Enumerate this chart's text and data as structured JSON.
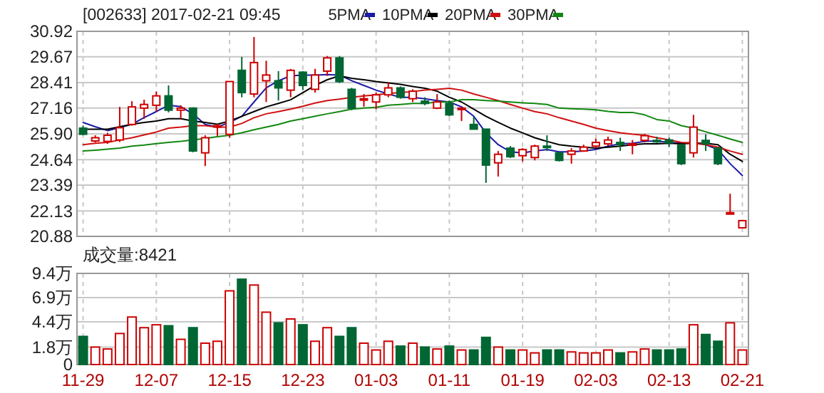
{
  "chart_data": [
    {
      "type": "candlestick",
      "title": "[002633] 2017-02-21 09:45",
      "categories": [
        null,
        null,
        null,
        null,
        null,
        null,
        null,
        null,
        null,
        null,
        null,
        null,
        null,
        null,
        null,
        null,
        null,
        null,
        null,
        null,
        null,
        null,
        null,
        null,
        null,
        null,
        null,
        null,
        null,
        null,
        null,
        null,
        null,
        null,
        null,
        null,
        null,
        null,
        null,
        null,
        null,
        null,
        null,
        null,
        null,
        null,
        null,
        null,
        null,
        null,
        null,
        null,
        null,
        null,
        null
      ],
      "ohlc": [
        [
          26.18,
          26.3,
          25.83,
          25.88
        ],
        [
          25.55,
          25.83,
          25.48,
          25.71
        ],
        [
          25.53,
          25.95,
          25.41,
          25.83
        ],
        [
          25.6,
          27.22,
          25.5,
          26.2
        ],
        [
          26.36,
          27.5,
          26.3,
          27.22
        ],
        [
          27.16,
          27.57,
          26.64,
          27.34
        ],
        [
          27.3,
          27.97,
          26.99,
          27.76
        ],
        [
          27.76,
          28.27,
          26.95,
          27.06
        ],
        [
          27.06,
          27.3,
          26.64,
          27.16
        ],
        [
          27.16,
          27.2,
          25.0,
          25.06
        ],
        [
          24.97,
          25.83,
          24.32,
          25.71
        ],
        [
          26.23,
          26.4,
          25.8,
          26.3
        ],
        [
          25.88,
          28.46,
          25.71,
          28.46
        ],
        [
          29.01,
          29.67,
          27.69,
          27.92
        ],
        [
          27.85,
          30.64,
          27.69,
          29.39
        ],
        [
          28.5,
          29.48,
          27.46,
          28.78
        ],
        [
          28.5,
          28.97,
          27.53,
          28.15
        ],
        [
          28.04,
          29.08,
          27.69,
          29.01
        ],
        [
          28.92,
          28.97,
          28.04,
          28.27
        ],
        [
          28.08,
          29.08,
          27.92,
          28.78
        ],
        [
          28.97,
          29.71,
          28.74,
          29.62
        ],
        [
          29.62,
          29.71,
          28.39,
          28.46
        ],
        [
          28.08,
          28.15,
          27.06,
          27.16
        ],
        [
          27.57,
          27.85,
          27.23,
          27.62
        ],
        [
          27.46,
          27.92,
          27.11,
          27.81
        ],
        [
          27.81,
          28.43,
          27.69,
          28.15
        ],
        [
          28.15,
          28.22,
          27.62,
          27.69
        ],
        [
          27.62,
          28.08,
          27.46,
          27.99
        ],
        [
          27.5,
          27.69,
          27.3,
          27.39
        ],
        [
          27.16,
          27.85,
          27.11,
          27.46
        ],
        [
          27.39,
          27.53,
          26.76,
          26.83
        ],
        [
          27.11,
          27.2,
          26.53,
          27.16
        ],
        [
          26.36,
          26.76,
          26.13,
          26.13
        ],
        [
          26.13,
          26.13,
          23.5,
          24.37
        ],
        [
          24.48,
          25.06,
          23.81,
          24.9
        ],
        [
          25.2,
          25.3,
          24.72,
          24.78
        ],
        [
          24.83,
          25.2,
          24.55,
          25.13
        ],
        [
          24.74,
          25.37,
          24.6,
          25.3
        ],
        [
          25.3,
          25.83,
          25.06,
          25.25
        ],
        [
          24.97,
          25.0,
          24.55,
          24.6
        ],
        [
          24.9,
          25.2,
          24.44,
          25.06
        ],
        [
          25.06,
          25.37,
          25.02,
          25.25
        ],
        [
          25.3,
          25.67,
          25.2,
          25.48
        ],
        [
          25.41,
          25.76,
          25.3,
          25.6
        ],
        [
          25.48,
          25.71,
          25.06,
          25.37
        ],
        [
          25.35,
          25.6,
          24.9,
          25.41
        ],
        [
          25.58,
          25.9,
          25.48,
          25.81
        ],
        [
          25.58,
          25.76,
          25.46,
          25.55
        ],
        [
          25.6,
          25.71,
          25.25,
          25.46
        ],
        [
          25.34,
          25.41,
          24.37,
          24.44
        ],
        [
          24.97,
          26.83,
          24.74,
          26.23
        ],
        [
          25.58,
          25.88,
          25.06,
          25.41
        ],
        [
          25.2,
          25.25,
          24.37,
          24.44
        ],
        [
          22.04,
          22.97,
          22.04,
          22.04
        ],
        [
          21.3,
          21.65,
          21.3,
          21.65
        ]
      ],
      "colors": [
        "#006633",
        "#cc0000",
        "#cc0000",
        "#cc0000",
        "#cc0000",
        "#cc0000",
        "#cc0000",
        "#006633",
        "#cc0000",
        "#006633",
        "#cc0000",
        "#cc0000",
        "#cc0000",
        "#006633",
        "#cc0000",
        "#cc0000",
        "#006633",
        "#cc0000",
        "#006633",
        "#cc0000",
        "#cc0000",
        "#006633",
        "#006633",
        "#cc0000",
        "#cc0000",
        "#cc0000",
        "#006633",
        "#cc0000",
        "#006633",
        "#cc0000",
        "#006633",
        "#cc0000",
        "#006633",
        "#006633",
        "#cc0000",
        "#006633",
        "#cc0000",
        "#cc0000",
        "#006633",
        "#006633",
        "#cc0000",
        "#cc0000",
        "#cc0000",
        "#cc0000",
        "#006633",
        "#cc0000",
        "#cc0000",
        "#006633",
        "#006633",
        "#006633",
        "#cc0000",
        "#006633",
        "#006633",
        "#cc0000",
        "#cc0000"
      ],
      "series": [
        {
          "name": "5PMA",
          "type": "line",
          "color": "#1a1aa6",
          "values": [
            26.46,
            26.25,
            26.06,
            26.2,
            26.37,
            26.7,
            26.99,
            27.3,
            27.23,
            26.88,
            26.36,
            26.23,
            26.46,
            26.76,
            27.46,
            28.15,
            28.5,
            28.74,
            28.78,
            28.78,
            28.8,
            28.78,
            28.5,
            28.27,
            28.04,
            27.85,
            27.69,
            27.69,
            27.62,
            27.53,
            27.46,
            27.22,
            26.76,
            25.95,
            25.37,
            25.02,
            24.97,
            25.06,
            25.13,
            25.02,
            25.02,
            25.06,
            25.13,
            25.3,
            25.41,
            25.44,
            25.53,
            25.55,
            25.48,
            25.44,
            25.48,
            25.37,
            25.13,
            24.44,
            23.86
          ]
        },
        {
          "name": "10PMA",
          "type": "line",
          "color": "#000000",
          "values": [
            26.13,
            26.13,
            26.13,
            26.25,
            26.37,
            26.46,
            26.53,
            26.64,
            26.64,
            26.53,
            26.46,
            26.37,
            26.53,
            26.76,
            26.99,
            27.22,
            27.39,
            27.57,
            27.92,
            28.27,
            28.55,
            28.74,
            28.62,
            28.55,
            28.46,
            28.39,
            28.32,
            28.22,
            28.13,
            27.99,
            27.69,
            27.46,
            27.11,
            26.76,
            26.46,
            26.18,
            25.95,
            25.71,
            25.53,
            25.37,
            25.3,
            25.25,
            25.2,
            25.25,
            25.3,
            25.37,
            25.41,
            25.41,
            25.44,
            25.41,
            25.44,
            25.44,
            25.37,
            24.9,
            24.55
          ]
        },
        {
          "name": "20PMA",
          "type": "line",
          "color": "#d01010",
          "values": [
            25.37,
            25.44,
            25.48,
            25.6,
            25.71,
            25.85,
            25.99,
            26.18,
            26.23,
            26.3,
            26.3,
            26.23,
            26.23,
            26.41,
            26.69,
            26.88,
            26.99,
            27.11,
            27.25,
            27.41,
            27.53,
            27.6,
            27.69,
            27.76,
            27.81,
            27.88,
            27.92,
            27.97,
            28.04,
            28.08,
            28.13,
            28.04,
            27.85,
            27.69,
            27.53,
            27.34,
            27.16,
            26.99,
            26.88,
            26.69,
            26.53,
            26.36,
            26.18,
            26.06,
            25.95,
            25.88,
            25.83,
            25.71,
            25.6,
            25.48,
            25.44,
            25.37,
            25.25,
            25.06,
            24.9
          ]
        },
        {
          "name": "30PMA",
          "type": "line",
          "color": "#118811",
          "values": [
            25.06,
            25.1,
            25.15,
            25.2,
            25.3,
            25.35,
            25.42,
            25.48,
            25.53,
            25.6,
            25.67,
            25.76,
            25.83,
            25.95,
            26.1,
            26.23,
            26.36,
            26.53,
            26.64,
            26.76,
            26.88,
            26.99,
            27.11,
            27.16,
            27.2,
            27.3,
            27.34,
            27.39,
            27.39,
            27.46,
            27.46,
            27.57,
            27.57,
            27.53,
            27.5,
            27.46,
            27.42,
            27.39,
            27.34,
            27.16,
            27.13,
            27.11,
            27.08,
            27.0,
            26.95,
            26.95,
            26.83,
            26.6,
            26.53,
            26.3,
            26.18,
            26.0,
            25.83,
            25.65,
            25.48
          ]
        }
      ],
      "ylim": [
        20.88,
        30.92
      ],
      "yticks": [
        20.88,
        22.13,
        23.39,
        24.64,
        {
          "value": 25.9,
          "label": "25.90"
        },
        27.16,
        28.41,
        29.67,
        30.92
      ],
      "grid": true,
      "legend": "top right",
      "tick_labels": "y"
    },
    {
      "type": "bar",
      "title": "成交量:8421",
      "categories": [
        "11-29",
        null,
        null,
        null,
        null,
        null,
        "12-07",
        null,
        null,
        null,
        null,
        null,
        "12-15",
        null,
        null,
        null,
        null,
        null,
        "12-23",
        null,
        null,
        null,
        null,
        null,
        "01-03",
        null,
        null,
        null,
        null,
        null,
        "01-11",
        null,
        null,
        null,
        null,
        null,
        "01-19",
        null,
        null,
        null,
        null,
        null,
        "02-03",
        null,
        null,
        null,
        null,
        null,
        "02-13",
        null,
        null,
        null,
        null,
        null,
        "02-21"
      ],
      "values": [
        2.9,
        1.8,
        1.6,
        3.2,
        4.9,
        3.8,
        4.1,
        4.0,
        2.6,
        3.8,
        2.2,
        2.4,
        7.6,
        8.8,
        8.2,
        5.4,
        4.3,
        4.7,
        4.1,
        2.4,
        3.8,
        2.9,
        3.8,
        2.2,
        1.5,
        2.4,
        1.9,
        2.2,
        1.8,
        1.6,
        1.9,
        1.5,
        1.5,
        2.8,
        1.8,
        1.5,
        1.5,
        1.2,
        1.5,
        1.5,
        1.3,
        1.2,
        1.2,
        1.5,
        1.2,
        1.3,
        1.6,
        1.5,
        1.5,
        1.6,
        4.1,
        3.1,
        2.4,
        4.3,
        1.5
      ],
      "colors": [
        "#006633",
        "#cc0000",
        "#cc0000",
        "#cc0000",
        "#cc0000",
        "#cc0000",
        "#cc0000",
        "#006633",
        "#cc0000",
        "#006633",
        "#cc0000",
        "#cc0000",
        "#cc0000",
        "#006633",
        "#cc0000",
        "#cc0000",
        "#006633",
        "#cc0000",
        "#006633",
        "#cc0000",
        "#cc0000",
        "#006633",
        "#006633",
        "#cc0000",
        "#cc0000",
        "#cc0000",
        "#006633",
        "#cc0000",
        "#006633",
        "#cc0000",
        "#006633",
        "#cc0000",
        "#006633",
        "#006633",
        "#cc0000",
        "#006633",
        "#cc0000",
        "#cc0000",
        "#006633",
        "#006633",
        "#cc0000",
        "#cc0000",
        "#cc0000",
        "#cc0000",
        "#006633",
        "#cc0000",
        "#cc0000",
        "#006633",
        "#006633",
        "#006633",
        "#cc0000",
        "#006633",
        "#006633",
        "#cc0000",
        "#cc0000"
      ],
      "ylim": [
        0,
        9.4
      ],
      "yticks": [
        0,
        {
          "value": 1.8,
          "label": "1.8万"
        },
        {
          "value": 4.4,
          "label": "4.4万"
        },
        {
          "value": 6.9,
          "label": "6.9万"
        },
        {
          "value": 9.4,
          "label": "9.4万"
        }
      ],
      "grid": true
    }
  ]
}
